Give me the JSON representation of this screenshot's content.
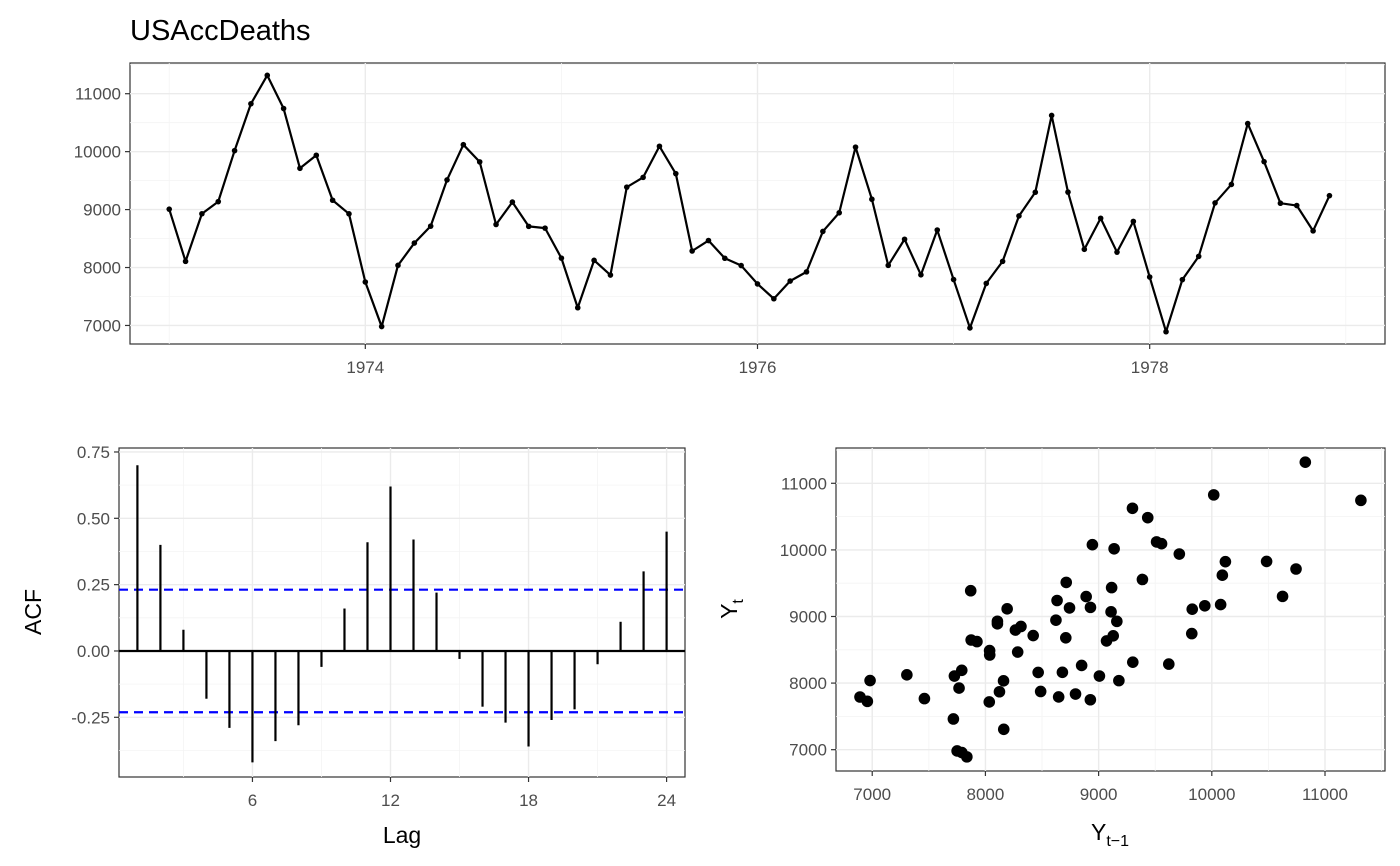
{
  "title": "USAccDeaths",
  "chart_data": [
    {
      "type": "line",
      "name": "time-series",
      "x_start": 1973,
      "frequency": 12,
      "values": [
        9007,
        8106,
        8928,
        9137,
        10017,
        10826,
        11317,
        10744,
        9713,
        9938,
        9161,
        8927,
        7750,
        6981,
        8038,
        8422,
        8714,
        9512,
        10120,
        9823,
        8743,
        9129,
        8710,
        8680,
        8162,
        7306,
        8124,
        7870,
        9387,
        9556,
        10093,
        9620,
        8285,
        8466,
        8160,
        8034,
        7717,
        7461,
        7767,
        7925,
        8623,
        8945,
        10078,
        9179,
        8037,
        8488,
        7874,
        8647,
        7792,
        6957,
        7726,
        8106,
        8890,
        9299,
        10625,
        9302,
        8314,
        8850,
        8265,
        8796,
        7836,
        6892,
        7791,
        8192,
        9115,
        9434,
        10484,
        9827,
        9110,
        9070,
        8633,
        9240
      ],
      "xlim": [
        1972.8,
        1979.2
      ],
      "ylim": [
        6680,
        11530
      ],
      "x_ticks": [
        1974,
        1976,
        1978
      ],
      "x_tick_labels": [
        "1974",
        "1976",
        "1978"
      ],
      "y_ticks": [
        7000,
        8000,
        9000,
        10000,
        11000
      ],
      "y_tick_labels": [
        "7000",
        "8000",
        "9000",
        "10000",
        "11000"
      ],
      "xlabel": "",
      "ylabel": "",
      "grid": true
    },
    {
      "type": "bar",
      "name": "acf",
      "lags": [
        1,
        2,
        3,
        4,
        5,
        6,
        7,
        8,
        9,
        10,
        11,
        12,
        13,
        14,
        15,
        16,
        17,
        18,
        19,
        20,
        21,
        22,
        23,
        24
      ],
      "values": [
        0.7,
        0.4,
        0.08,
        -0.18,
        -0.29,
        -0.42,
        -0.34,
        -0.28,
        -0.06,
        0.16,
        0.41,
        0.62,
        0.42,
        0.22,
        -0.03,
        -0.21,
        -0.27,
        -0.36,
        -0.26,
        -0.22,
        -0.05,
        0.11,
        0.3,
        0.45
      ],
      "confidence_bound": 0.231,
      "xlim": [
        0.2,
        24.8
      ],
      "ylim": [
        -0.475,
        0.765
      ],
      "x_ticks": [
        6,
        12,
        18,
        24
      ],
      "x_tick_labels": [
        "6",
        "12",
        "18",
        "24"
      ],
      "y_ticks": [
        -0.25,
        0.0,
        0.25,
        0.5,
        0.75
      ],
      "y_tick_labels": [
        "-0.25",
        "0.00",
        "0.25",
        "0.50",
        "0.75"
      ],
      "xlabel": "Lag",
      "ylabel": "ACF",
      "bound_color": "#0000ff",
      "grid": true
    },
    {
      "type": "scatter",
      "name": "lag-plot",
      "x_ticks": [
        7000,
        8000,
        9000,
        10000,
        11000
      ],
      "x_tick_labels": [
        "7000",
        "8000",
        "9000",
        "10000",
        "11000"
      ],
      "y_ticks": [
        7000,
        8000,
        9000,
        10000,
        11000
      ],
      "y_tick_labels": [
        "7000",
        "8000",
        "9000",
        "10000",
        "11000"
      ],
      "xlim": [
        6680,
        11530
      ],
      "ylim": [
        6680,
        11530
      ],
      "xlabel": "Y",
      "xlabel_sub": "t−1",
      "ylabel": "Y",
      "ylabel_sub": "t",
      "grid": true
    }
  ]
}
